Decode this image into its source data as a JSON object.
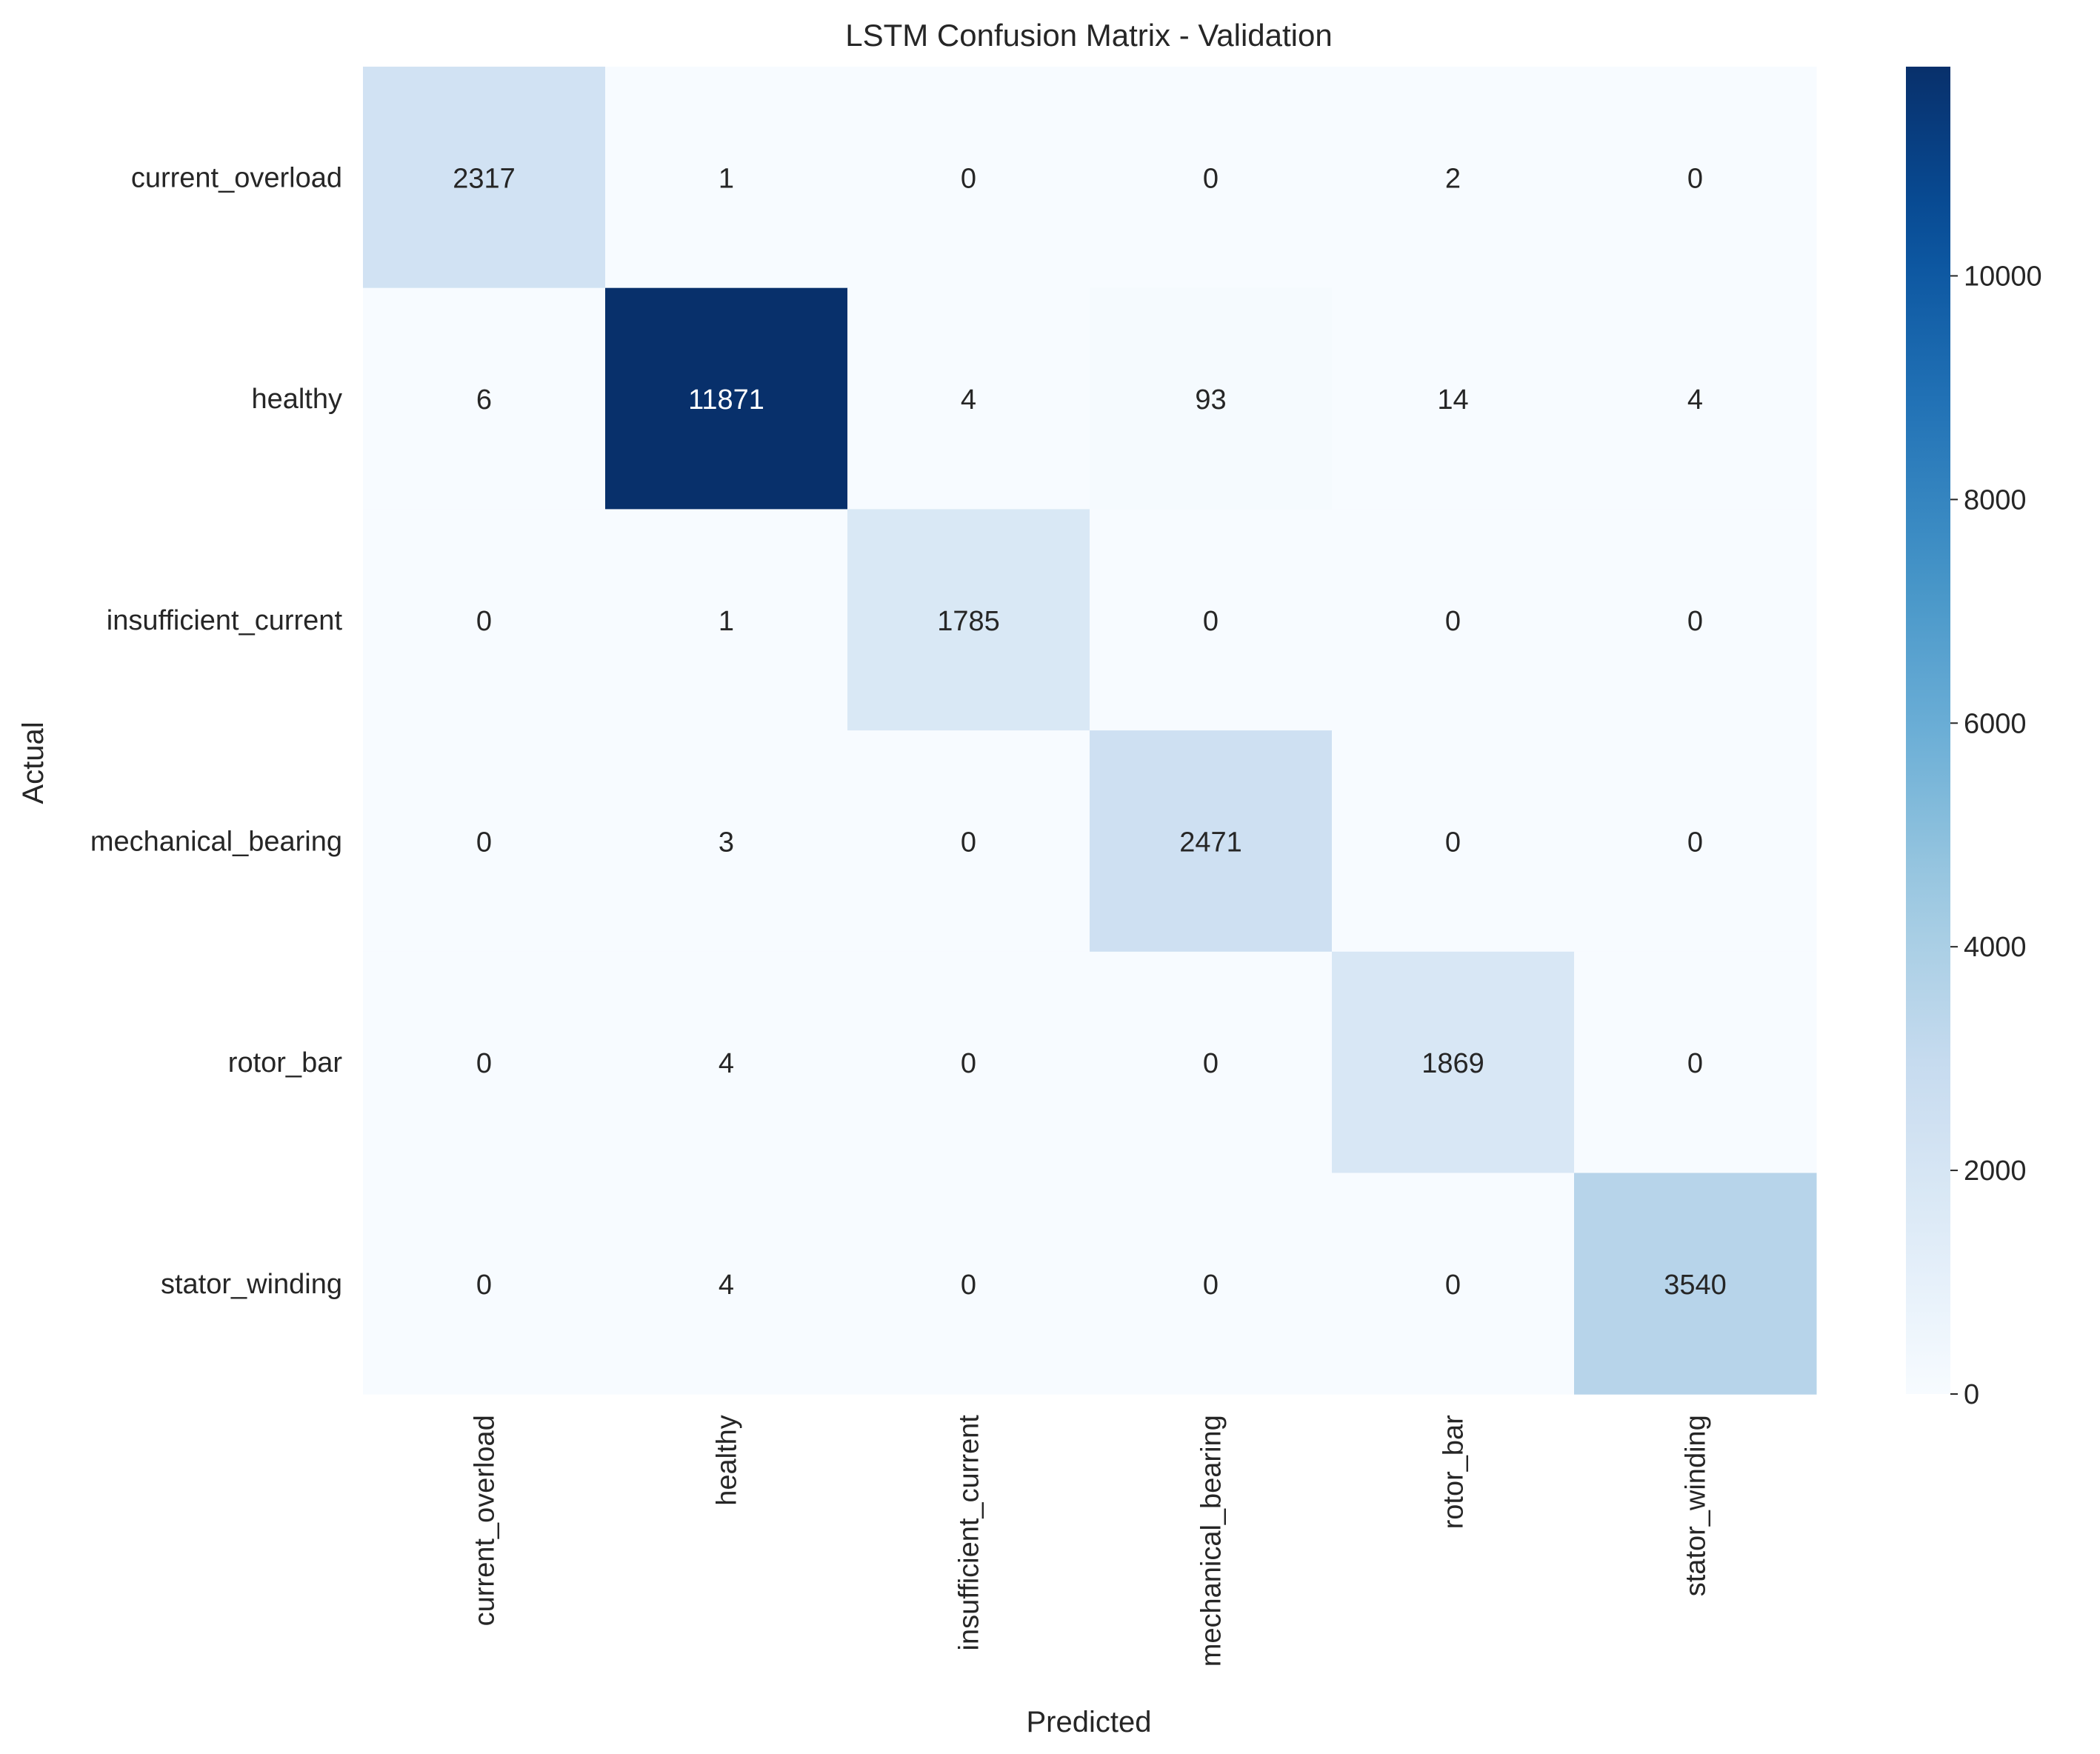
{
  "chart_data": {
    "type": "heatmap",
    "title": "LSTM Confusion Matrix - Validation",
    "xlabel": "Predicted",
    "ylabel": "Actual",
    "x_categories": [
      "current_overload",
      "healthy",
      "insufficient_current",
      "mechanical_bearing",
      "rotor_bar",
      "stator_winding"
    ],
    "y_categories": [
      "current_overload",
      "healthy",
      "insufficient_current",
      "mechanical_bearing",
      "rotor_bar",
      "stator_winding"
    ],
    "values": [
      [
        2317,
        1,
        0,
        0,
        2,
        0
      ],
      [
        6,
        11871,
        4,
        93,
        14,
        4
      ],
      [
        0,
        1,
        1785,
        0,
        0,
        0
      ],
      [
        0,
        3,
        0,
        2471,
        0,
        0
      ],
      [
        0,
        4,
        0,
        0,
        1869,
        0
      ],
      [
        0,
        4,
        0,
        0,
        0,
        3540
      ]
    ],
    "colormap": "Blues",
    "colorbar": {
      "min": 0,
      "max": 11871,
      "ticks": [
        0,
        2000,
        4000,
        6000,
        8000,
        10000
      ]
    },
    "grid": false
  }
}
